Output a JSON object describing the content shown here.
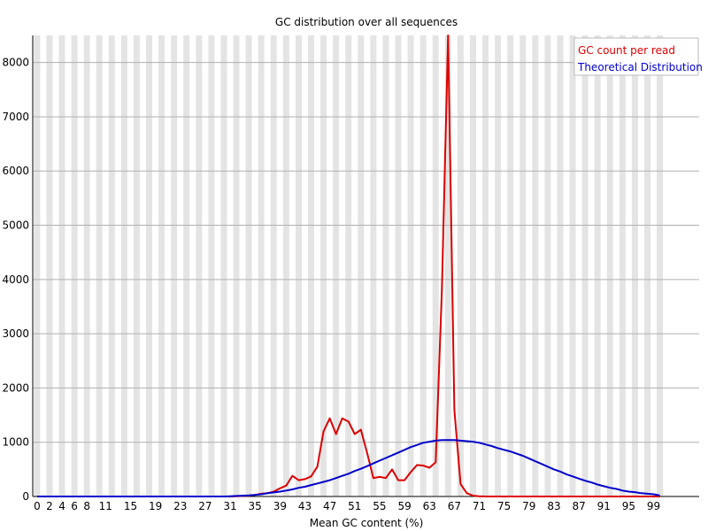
{
  "chart_data": {
    "type": "line",
    "title": "GC distribution over all sequences",
    "xlabel": "Mean GC content (%)",
    "ylabel": "",
    "xlim": [
      0,
      100
    ],
    "ylim": [
      0,
      8500
    ],
    "x_tick_labels": [
      "0",
      "2",
      "4",
      "6",
      "8",
      "11",
      "15",
      "19",
      "23",
      "27",
      "31",
      "35",
      "39",
      "43",
      "47",
      "51",
      "55",
      "59",
      "63",
      "67",
      "71",
      "75",
      "79",
      "83",
      "87",
      "91",
      "95",
      "99"
    ],
    "y_tick_labels": [
      "0",
      "1000",
      "2000",
      "3000",
      "4000",
      "5000",
      "6000",
      "7000",
      "8000"
    ],
    "y_ticks": [
      0,
      1000,
      2000,
      3000,
      4000,
      5000,
      6000,
      7000,
      8000
    ],
    "grid": true,
    "legend_position": "top-right",
    "x": [
      0,
      1,
      2,
      3,
      4,
      5,
      6,
      7,
      8,
      9,
      10,
      11,
      12,
      13,
      14,
      15,
      16,
      17,
      18,
      19,
      20,
      21,
      22,
      23,
      24,
      25,
      26,
      27,
      28,
      29,
      30,
      31,
      32,
      33,
      34,
      35,
      36,
      37,
      38,
      39,
      40,
      41,
      42,
      43,
      44,
      45,
      46,
      47,
      48,
      49,
      50,
      51,
      52,
      53,
      54,
      55,
      56,
      57,
      58,
      59,
      60,
      61,
      62,
      63,
      64,
      65,
      66,
      67,
      68,
      69,
      70,
      71,
      72,
      73,
      74,
      75,
      76,
      77,
      78,
      79,
      80,
      81,
      82,
      83,
      84,
      85,
      86,
      87,
      88,
      89,
      90,
      91,
      92,
      93,
      94,
      95,
      96,
      97,
      98,
      99,
      100
    ],
    "series": [
      {
        "name": "GC count per read",
        "color": "#dd0000",
        "values": [
          0,
          0,
          0,
          0,
          0,
          0,
          0,
          0,
          0,
          0,
          0,
          0,
          0,
          0,
          0,
          0,
          0,
          0,
          0,
          0,
          0,
          0,
          0,
          0,
          0,
          0,
          0,
          0,
          0,
          0,
          0,
          0,
          5,
          10,
          15,
          30,
          50,
          60,
          90,
          150,
          200,
          380,
          300,
          320,
          370,
          550,
          1200,
          1440,
          1150,
          1440,
          1380,
          1150,
          1230,
          800,
          340,
          360,
          340,
          500,
          300,
          300,
          450,
          580,
          570,
          530,
          630,
          3800,
          8500,
          1600,
          230,
          60,
          15,
          5,
          0,
          0,
          0,
          0,
          0,
          0,
          0,
          0,
          0,
          0,
          0,
          0,
          0,
          0,
          0,
          0,
          0,
          0,
          0,
          0,
          0,
          0,
          0,
          0,
          0,
          0,
          0,
          0,
          0
        ]
      },
      {
        "name": "Theoretical Distribution",
        "color": "#0000cc",
        "values": [
          0,
          0,
          0,
          0,
          0,
          0,
          0,
          0,
          0,
          0,
          0,
          0,
          0,
          0,
          0,
          0,
          0,
          0,
          0,
          0,
          0,
          0,
          0,
          0,
          0,
          0,
          0,
          0,
          0,
          0,
          0,
          5,
          10,
          15,
          20,
          30,
          40,
          60,
          75,
          90,
          110,
          130,
          160,
          180,
          210,
          240,
          270,
          300,
          340,
          380,
          420,
          470,
          510,
          560,
          610,
          660,
          710,
          760,
          810,
          860,
          910,
          950,
          990,
          1010,
          1030,
          1040,
          1040,
          1040,
          1030,
          1020,
          1010,
          990,
          960,
          930,
          890,
          860,
          830,
          790,
          750,
          700,
          650,
          600,
          550,
          500,
          460,
          410,
          370,
          330,
          290,
          260,
          220,
          190,
          160,
          140,
          110,
          90,
          80,
          60,
          50,
          40,
          20
        ]
      }
    ]
  }
}
